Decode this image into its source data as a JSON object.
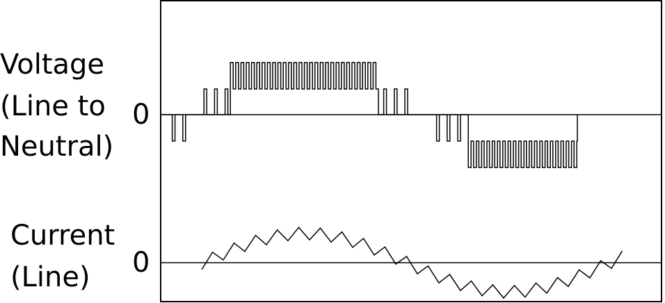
{
  "voltage_label": [
    "Voltage",
    "(Line to",
    "Neutral)"
  ],
  "voltage_zero": "0",
  "current_label": [
    "Current",
    "(Line)"
  ],
  "current_zero": "0"
}
